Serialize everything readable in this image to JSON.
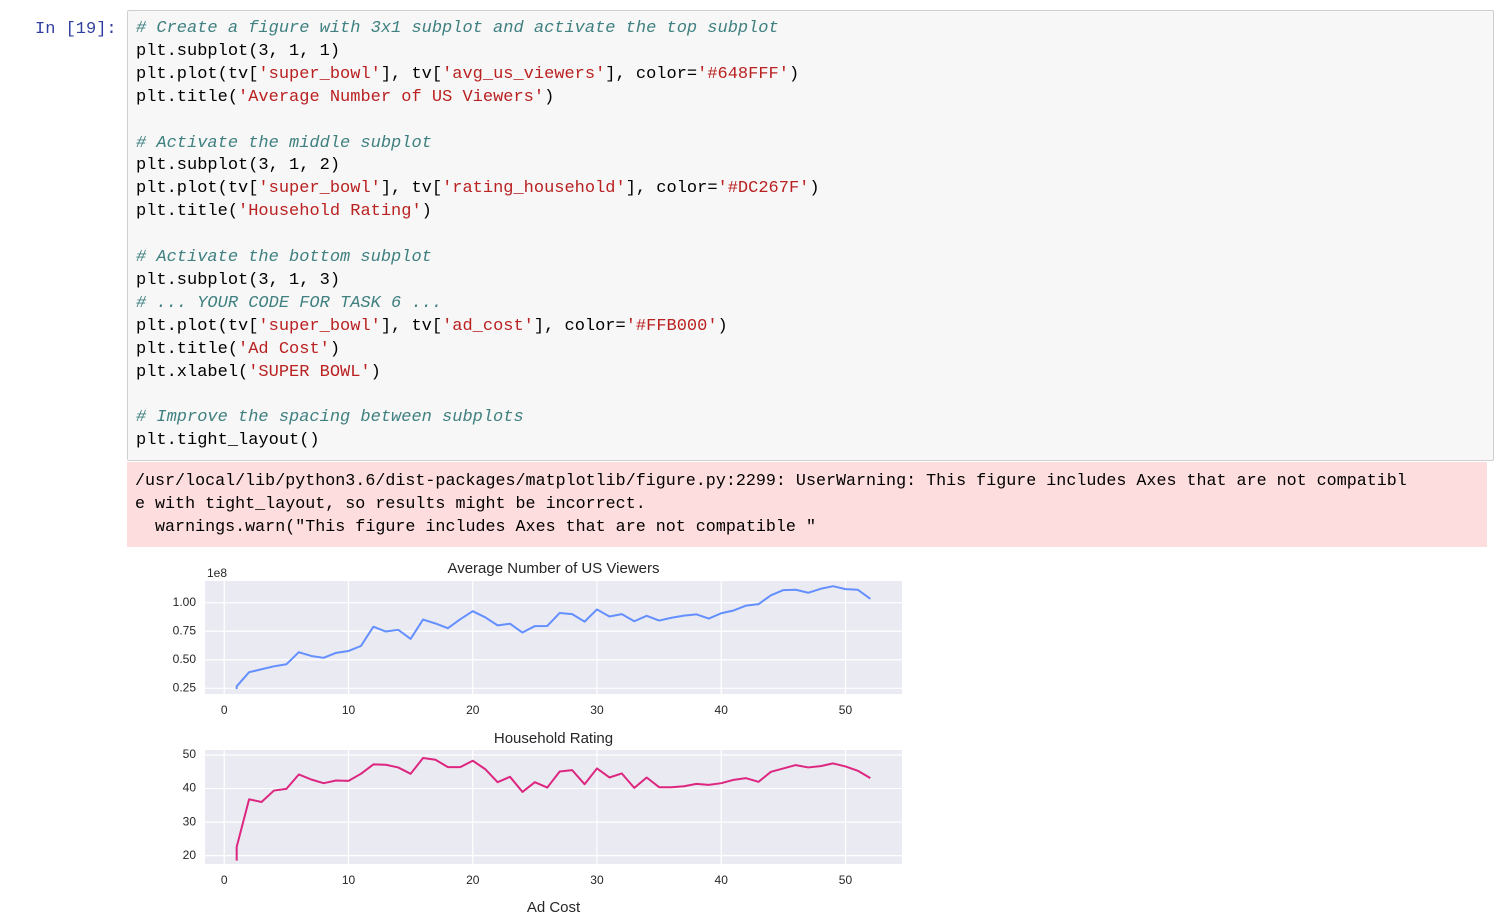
{
  "cell": {
    "prompt": "In [19]:",
    "code": [
      [
        "# Create a figure with 3x1 subplot and activate the top subplot",
        "plt.subplot(3, 1, 1)",
        "plt.plot(tv['super_bowl'], tv['avg_us_viewers'], color='#648FFF')",
        "plt.title('Average Number of US Viewers')"
      ],
      [
        "# Activate the middle subplot",
        "plt.subplot(3, 1, 2)",
        "plt.plot(tv['super_bowl'], tv['rating_household'], color='#DC267F')",
        "plt.title('Household Rating')"
      ],
      [
        "# Activate the bottom subplot",
        "plt.subplot(3, 1, 3)",
        "# ... YOUR CODE FOR TASK 6 ...",
        "plt.plot(tv['super_bowl'], tv['ad_cost'], color='#FFB000')",
        "plt.title('Ad Cost')",
        "plt.xlabel('SUPER BOWL')"
      ],
      [
        "# Improve the spacing between subplots",
        "plt.tight_layout()"
      ]
    ],
    "stderr": [
      "/usr/local/lib/python3.6/dist-packages/matplotlib/figure.py:2299: UserWarning: This figure includes Axes that are not compatibl",
      "e with tight_layout, so results might be incorrect.",
      "  warnings.warn(\"This figure includes Axes that are not compatible \""
    ]
  },
  "chart_data": [
    {
      "type": "line",
      "title": "Average Number of US Viewers",
      "offset_label": "1e8",
      "color": "#648FFF",
      "grid": true,
      "x": [
        1,
        1,
        2,
        3,
        4,
        5,
        6,
        7,
        8,
        9,
        10,
        11,
        12,
        13,
        14,
        15,
        16,
        17,
        18,
        19,
        20,
        21,
        22,
        23,
        24,
        25,
        26,
        27,
        28,
        29,
        30,
        31,
        32,
        33,
        34,
        35,
        36,
        37,
        38,
        39,
        40,
        41,
        42,
        43,
        44,
        45,
        46,
        47,
        48,
        49,
        50,
        51,
        52
      ],
      "values": [
        0.2443,
        0.2675,
        0.3912,
        0.4166,
        0.4427,
        0.4604,
        0.5664,
        0.5332,
        0.517,
        0.5605,
        0.5771,
        0.6205,
        0.7894,
        0.7474,
        0.7624,
        0.6829,
        0.8524,
        0.8177,
        0.7762,
        0.8553,
        0.9257,
        0.8719,
        0.8014,
        0.8159,
        0.7385,
        0.7951,
        0.7959,
        0.9099,
        0.9,
        0.8342,
        0.9408,
        0.8787,
        0.9,
        0.8372,
        0.8847,
        0.8434,
        0.868,
        0.8864,
        0.898,
        0.8607,
        0.9075,
        0.9318,
        0.9745,
        0.9873,
        1.0648,
        1.1104,
        1.1135,
        1.0869,
        1.1219,
        1.1444,
        1.1186,
        1.1132,
        1.0339
      ],
      "xlim": [
        -1.55,
        54.55
      ],
      "xticks": [
        0,
        10,
        20,
        30,
        40,
        50
      ],
      "ylim": [
        0.2,
        1.19
      ],
      "yticks": [
        {
          "value": 0.25,
          "label": "0.25"
        },
        {
          "value": 0.5,
          "label": "0.50"
        },
        {
          "value": 0.75,
          "label": "0.75"
        },
        {
          "value": 1,
          "label": "1.00"
        }
      ]
    },
    {
      "type": "line",
      "title": "Household Rating",
      "color": "#DC267F",
      "grid": true,
      "x": [
        1,
        1,
        2,
        3,
        4,
        5,
        6,
        7,
        8,
        9,
        10,
        11,
        12,
        13,
        14,
        15,
        16,
        17,
        18,
        19,
        20,
        21,
        22,
        23,
        24,
        25,
        26,
        27,
        28,
        29,
        30,
        31,
        32,
        33,
        34,
        35,
        36,
        37,
        38,
        39,
        40,
        41,
        42,
        43,
        44,
        45,
        46,
        47,
        48,
        49,
        50,
        51,
        52
      ],
      "values": [
        18.5,
        22.6,
        36.8,
        36.0,
        39.4,
        39.9,
        44.2,
        42.7,
        41.6,
        42.4,
        42.3,
        44.4,
        47.2,
        47.1,
        46.3,
        44.4,
        49.1,
        48.6,
        46.4,
        46.4,
        48.3,
        45.8,
        41.9,
        43.5,
        39.0,
        41.9,
        40.3,
        45.1,
        45.5,
        41.3,
        46.0,
        43.3,
        44.5,
        40.2,
        43.3,
        40.4,
        40.4,
        40.7,
        41.4,
        41.1,
        41.6,
        42.6,
        43.1,
        42.0,
        45.0,
        46.0,
        47.0,
        46.3,
        46.7,
        47.5,
        46.6,
        45.3,
        43.1
      ],
      "xlim": [
        -1.55,
        54.55
      ],
      "xticks": [
        0,
        10,
        20,
        30,
        40,
        50
      ],
      "ylim": [
        17.5,
        51.5
      ],
      "yticks": [
        20,
        30,
        40,
        50
      ]
    },
    {
      "type": "line",
      "title": "Ad Cost"
    }
  ]
}
